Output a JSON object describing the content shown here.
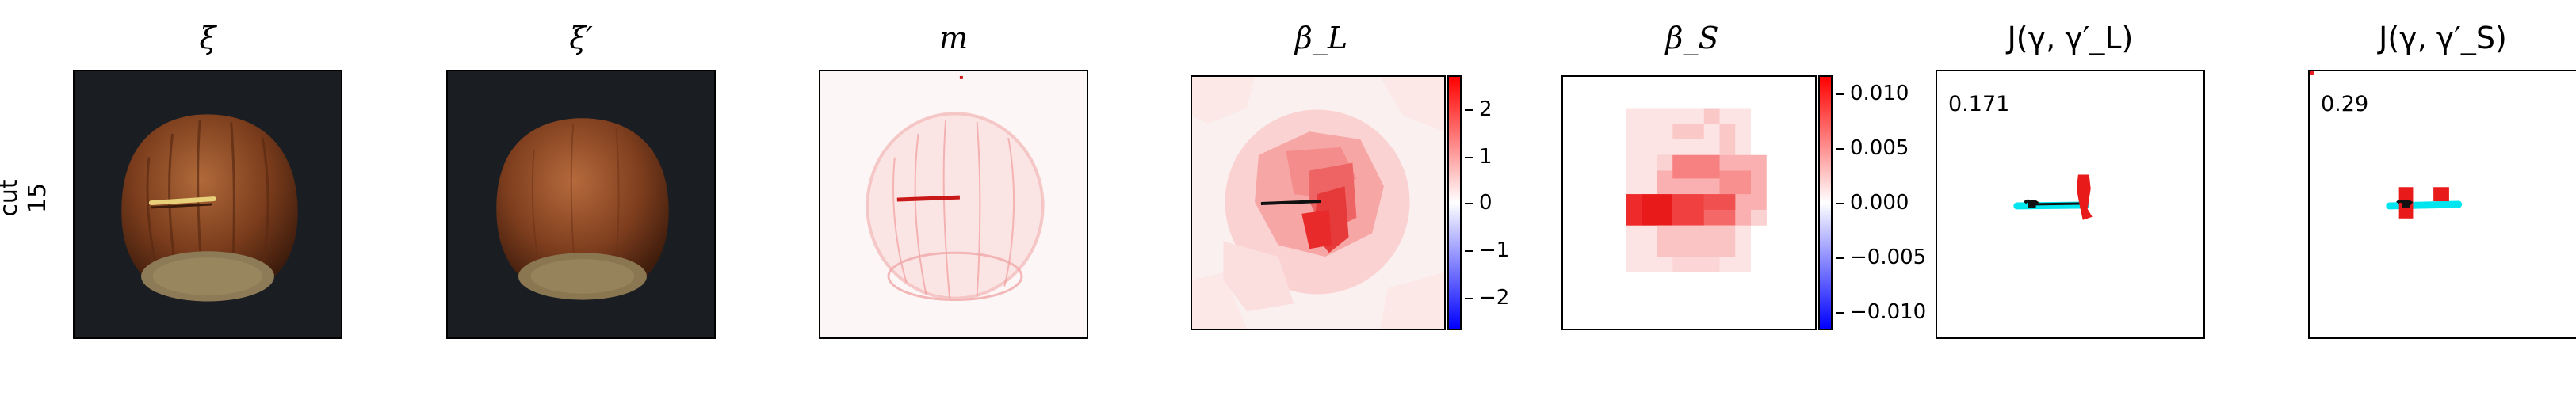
{
  "row_label": "cut\n15",
  "panels": {
    "xi": {
      "title": "ξ"
    },
    "xi_prime": {
      "title": "ξ′"
    },
    "m": {
      "title": "m"
    },
    "beta_l": {
      "title": "β_L"
    },
    "beta_s": {
      "title": "β_S"
    },
    "j_l": {
      "title": "J(γ, γ′_L)",
      "value": "0.171"
    },
    "j_s": {
      "title": "J(γ, γ′_S)",
      "value": "0.29"
    }
  },
  "colorbars": {
    "beta_l": {
      "ticks": [
        "2",
        "1",
        "0",
        "−1",
        "−2"
      ],
      "range": [
        -2.7,
        2.7
      ]
    },
    "beta_s": {
      "ticks": [
        "0.010",
        "0.005",
        "0.000",
        "−0.005",
        "−0.010"
      ],
      "range": [
        -0.0115,
        0.0115
      ]
    }
  },
  "colors": {
    "positive": "#ff0000",
    "negative": "#0000ff",
    "cyan": "#00e5ee",
    "background_image": "#1a1e22"
  }
}
